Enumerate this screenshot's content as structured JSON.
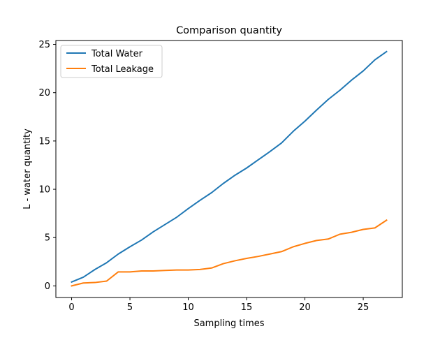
{
  "chart_data": {
    "type": "line",
    "title": "Comparison quantity",
    "xlabel": "Sampling times",
    "ylabel": "L - water quantity",
    "xlim": [
      -1.35,
      28.35
    ],
    "ylim": [
      -1.2,
      25.4
    ],
    "xticks": [
      0,
      5,
      10,
      15,
      20,
      25
    ],
    "yticks": [
      0,
      5,
      10,
      15,
      20,
      25
    ],
    "grid": false,
    "legend_position": "top-left",
    "x": [
      0,
      1,
      2,
      3,
      4,
      5,
      6,
      7,
      8,
      9,
      10,
      11,
      12,
      13,
      14,
      15,
      16,
      17,
      18,
      19,
      20,
      21,
      22,
      23,
      24,
      25,
      26,
      27
    ],
    "series": [
      {
        "name": "Total Water",
        "color": "#1f77b4",
        "values": [
          0.4,
          0.9,
          1.7,
          2.4,
          3.3,
          4.05,
          4.75,
          5.6,
          6.35,
          7.1,
          8.0,
          8.85,
          9.65,
          10.6,
          11.45,
          12.2,
          13.05,
          13.9,
          14.8,
          16.0,
          17.05,
          18.2,
          19.3,
          20.25,
          21.3,
          22.25,
          23.4,
          24.25
        ]
      },
      {
        "name": "Total Leakage",
        "color": "#ff7f0e",
        "values": [
          0.0,
          0.3,
          0.35,
          0.5,
          1.45,
          1.45,
          1.55,
          1.55,
          1.6,
          1.65,
          1.65,
          1.7,
          1.85,
          2.3,
          2.6,
          2.85,
          3.05,
          3.3,
          3.55,
          4.05,
          4.4,
          4.7,
          4.85,
          5.35,
          5.55,
          5.85,
          6.0,
          6.8
        ]
      }
    ]
  }
}
